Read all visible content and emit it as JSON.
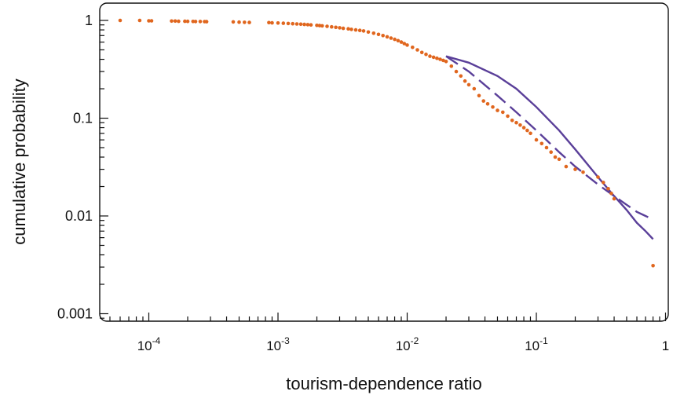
{
  "chart_data": {
    "type": "scatter",
    "title": "",
    "xlabel": "tourism-dependence ratio",
    "ylabel": "cumulative probability",
    "x_scale": "log",
    "y_scale": "log",
    "xlim": [
      4e-05,
      1
    ],
    "ylim": [
      0.0007,
      1.2
    ],
    "grid": false,
    "x_ticks": [
      {
        "value": 0.0001,
        "base": "10",
        "exp": "-4"
      },
      {
        "value": 0.001,
        "base": "10",
        "exp": "-3"
      },
      {
        "value": 0.01,
        "base": "10",
        "exp": "-2"
      },
      {
        "value": 0.1,
        "base": "10",
        "exp": "-1"
      },
      {
        "value": 1,
        "base": "1",
        "exp": ""
      }
    ],
    "y_ticks": [
      {
        "value": 1,
        "label": "1"
      },
      {
        "value": 0.1,
        "label": "0.1"
      },
      {
        "value": 0.01,
        "label": "0.01"
      },
      {
        "value": 0.001,
        "label": "0.001"
      }
    ],
    "colors": {
      "points": "#e0661e",
      "fits": "#5a3f99",
      "axes": "#111111"
    },
    "series": [
      {
        "style": "points",
        "x": [
          6e-05,
          8.5e-05,
          0.0001,
          0.000105,
          0.00015,
          0.00016,
          0.00017,
          0.00019,
          0.0002,
          0.00022,
          0.00023,
          0.00025,
          0.00027,
          0.00028,
          0.00045,
          0.0005,
          0.00055,
          0.0006,
          0.00085,
          0.0009,
          0.001,
          0.0011,
          0.0012,
          0.0013,
          0.0014,
          0.0015,
          0.0016,
          0.0017,
          0.0018,
          0.002,
          0.0021,
          0.0022,
          0.0024,
          0.0026,
          0.0028,
          0.003,
          0.0032,
          0.0035,
          0.0037,
          0.004,
          0.0043,
          0.0046,
          0.005,
          0.0055,
          0.006,
          0.0065,
          0.007,
          0.0075,
          0.008,
          0.0085,
          0.009,
          0.0095,
          0.01,
          0.011,
          0.012,
          0.013,
          0.014,
          0.015,
          0.016,
          0.017,
          0.018,
          0.019,
          0.02,
          0.022,
          0.024,
          0.026,
          0.028,
          0.03,
          0.033,
          0.036,
          0.039,
          0.042,
          0.046,
          0.05,
          0.055,
          0.06,
          0.065,
          0.07,
          0.075,
          0.08,
          0.085,
          0.09,
          0.1,
          0.11,
          0.12,
          0.13,
          0.14,
          0.15,
          0.17,
          0.2,
          0.23,
          0.3,
          0.33,
          0.36,
          0.38,
          0.4,
          0.8
        ],
        "y": [
          1.0,
          1.0,
          0.99,
          0.99,
          0.985,
          0.985,
          0.98,
          0.98,
          0.978,
          0.976,
          0.975,
          0.974,
          0.972,
          0.97,
          0.965,
          0.96,
          0.957,
          0.953,
          0.95,
          0.945,
          0.94,
          0.935,
          0.93,
          0.925,
          0.92,
          0.915,
          0.91,
          0.905,
          0.9,
          0.89,
          0.885,
          0.88,
          0.87,
          0.86,
          0.85,
          0.84,
          0.83,
          0.82,
          0.81,
          0.8,
          0.79,
          0.78,
          0.76,
          0.74,
          0.72,
          0.7,
          0.68,
          0.66,
          0.64,
          0.62,
          0.6,
          0.58,
          0.56,
          0.53,
          0.5,
          0.47,
          0.45,
          0.43,
          0.42,
          0.41,
          0.4,
          0.39,
          0.38,
          0.34,
          0.3,
          0.27,
          0.24,
          0.22,
          0.2,
          0.17,
          0.15,
          0.14,
          0.13,
          0.12,
          0.115,
          0.105,
          0.095,
          0.09,
          0.085,
          0.08,
          0.075,
          0.07,
          0.06,
          0.055,
          0.05,
          0.045,
          0.04,
          0.038,
          0.032,
          0.03,
          0.028,
          0.025,
          0.022,
          0.019,
          0.017,
          0.015,
          0.0031
        ]
      },
      {
        "style": "solid",
        "x": [
          0.02,
          0.03,
          0.05,
          0.07,
          0.1,
          0.15,
          0.2,
          0.3,
          0.4,
          0.5,
          0.6,
          0.7,
          0.8
        ],
        "y": [
          0.43,
          0.37,
          0.27,
          0.2,
          0.13,
          0.075,
          0.048,
          0.025,
          0.016,
          0.0115,
          0.0085,
          0.007,
          0.0058
        ]
      },
      {
        "style": "dashed",
        "x": [
          0.02,
          0.03,
          0.05,
          0.07,
          0.1,
          0.15,
          0.2,
          0.3,
          0.4,
          0.5,
          0.6,
          0.7,
          0.8
        ],
        "y": [
          0.43,
          0.3,
          0.17,
          0.115,
          0.075,
          0.045,
          0.032,
          0.021,
          0.016,
          0.013,
          0.011,
          0.01,
          0.0092
        ]
      }
    ]
  }
}
